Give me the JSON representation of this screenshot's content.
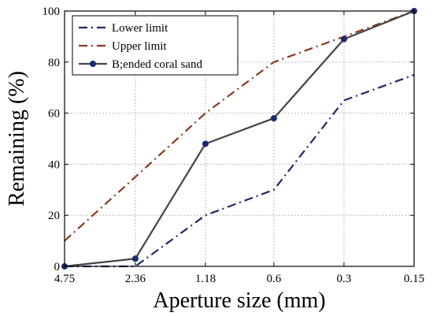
{
  "chart_data": {
    "type": "line",
    "x_categories": [
      "4.75",
      "2.36",
      "1.18",
      "0.6",
      "0.3",
      "0.15"
    ],
    "xlabel": "Aperture size (mm)",
    "ylabel": "Remaining (%)",
    "ylim": [
      0,
      100
    ],
    "yticks": [
      0,
      20,
      40,
      60,
      80,
      100
    ],
    "grid": "dashed",
    "legend_position": "top-left",
    "series": [
      {
        "name": "Lower limit",
        "x": [
          "4.75",
          "2.36",
          "1.18",
          "0.6",
          "0.3",
          "0.15"
        ],
        "values": [
          0,
          0,
          20,
          30,
          65,
          75
        ],
        "color": "#1a2a6b",
        "dash": "dash-dot",
        "marker": false
      },
      {
        "name": "Upper limit",
        "x": [
          "4.75",
          "2.36",
          "1.18",
          "0.6",
          "0.3",
          "0.15"
        ],
        "values": [
          10,
          35,
          60,
          80,
          90,
          100
        ],
        "color": "#8b3a1e",
        "dash": "dash-dot",
        "marker": false
      },
      {
        "name": "B;ended coral sand",
        "x": [
          "4.75",
          "2.36",
          "1.18",
          "0.6",
          "0.3",
          "0.15"
        ],
        "values": [
          0,
          3,
          48,
          58,
          89,
          100
        ],
        "color": "#444444",
        "dash": "solid",
        "marker": true,
        "marker_color": "#1a2a6b"
      }
    ]
  }
}
